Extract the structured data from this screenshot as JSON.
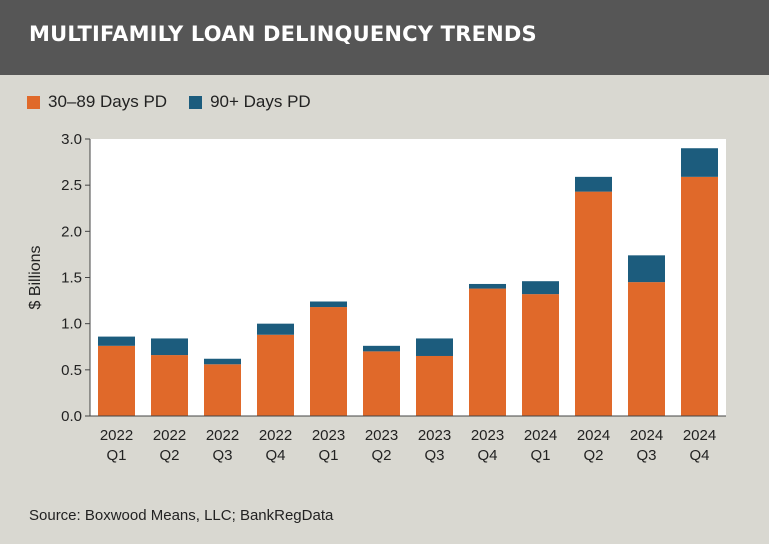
{
  "header": {
    "title": "MULTIFAMILY LOAN DELINQUENCY TRENDS"
  },
  "source": "Source: Boxwood Means, LLC; BankRegData",
  "colors": {
    "series_30_89": "#e0692a",
    "series_90_plus": "#1c5c7d",
    "header_bg": "#565656",
    "background": "#d9d8d1"
  },
  "chart_data": {
    "type": "bar",
    "stacked": true,
    "title": "MULTIFAMILY LOAN DELINQUENCY TRENDS",
    "ylabel": "$ Billions",
    "xlabel": "",
    "ylim": [
      0,
      3.0
    ],
    "yticks": [
      "0.0",
      "0.5",
      "1.0",
      "1.5",
      "2.0",
      "2.5",
      "3.0"
    ],
    "yticks_values": [
      0,
      0.5,
      1.0,
      1.5,
      2.0,
      2.5,
      3.0
    ],
    "categories": [
      [
        "2022",
        "Q1"
      ],
      [
        "2022",
        "Q2"
      ],
      [
        "2022",
        "Q3"
      ],
      [
        "2022",
        "Q4"
      ],
      [
        "2023",
        "Q1"
      ],
      [
        "2023",
        "Q2"
      ],
      [
        "2023",
        "Q3"
      ],
      [
        "2023",
        "Q4"
      ],
      [
        "2024",
        "Q1"
      ],
      [
        "2024",
        "Q2"
      ],
      [
        "2024",
        "Q3"
      ],
      [
        "2024",
        "Q4"
      ]
    ],
    "legend_position": "top-left",
    "grid": false,
    "series": [
      {
        "name": "30–89 Days PD",
        "color": "#e0692a",
        "values": [
          0.76,
          0.66,
          0.56,
          0.88,
          1.18,
          0.7,
          0.65,
          1.38,
          1.32,
          2.43,
          1.45,
          2.59
        ]
      },
      {
        "name": "90+ Days PD",
        "color": "#1c5c7d",
        "values": [
          0.1,
          0.18,
          0.06,
          0.12,
          0.06,
          0.06,
          0.19,
          0.05,
          0.14,
          0.16,
          0.29,
          0.31
        ]
      }
    ]
  }
}
